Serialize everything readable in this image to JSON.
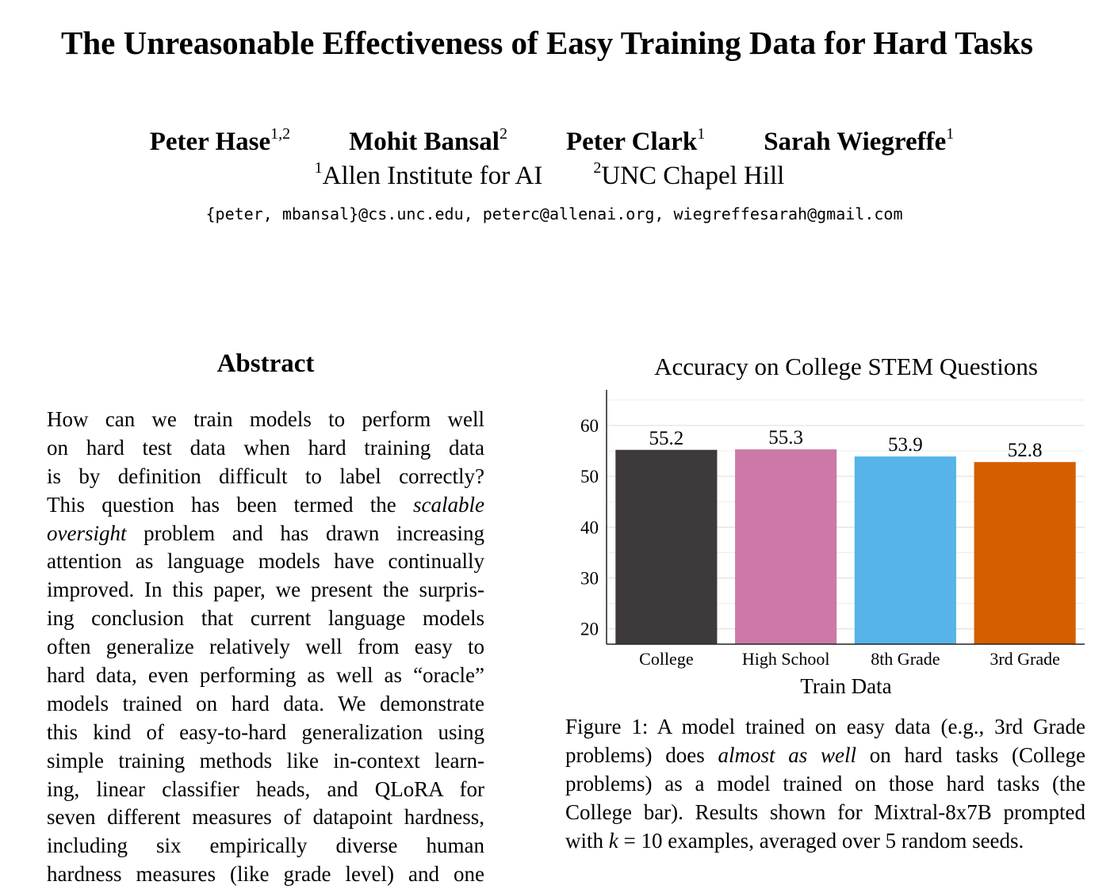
{
  "title": "The Unreasonable Effectiveness of Easy Training Data for Hard Tasks",
  "authors": [
    {
      "name": "Peter Hase",
      "sup": "1,2"
    },
    {
      "name": "Mohit Bansal",
      "sup": "2"
    },
    {
      "name": "Peter Clark",
      "sup": "1"
    },
    {
      "name": "Sarah Wiegreffe",
      "sup": "1"
    }
  ],
  "affiliations": [
    {
      "sup": "1",
      "name": "Allen Institute for AI"
    },
    {
      "sup": "2",
      "name": "UNC Chapel Hill"
    }
  ],
  "emails": "{peter, mbansal}@cs.unc.edu, peterc@allenai.org, wiegreffesarah@gmail.com",
  "abstract": {
    "heading": "Abstract",
    "lines": [
      "How can we train models to perform well",
      "on hard test data when hard training data",
      "is by definition difficult to label correctly?",
      "This question has been termed the scalable",
      "oversight problem and has drawn increasing",
      "attention as language models have continually",
      "improved. In this paper, we present the surpris-",
      "ing conclusion that current language models",
      "often generalize relatively well from easy to",
      "hard data, even performing as well as “oracle”",
      "models trained on hard data. We demonstrate",
      "this kind of easy-to-hard generalization using",
      "simple training methods like in-context learn-",
      "ing, linear classifier heads, and QLoRA for",
      "seven different measures of datapoint hardness,",
      "including six empirically diverse human",
      "hardness measures (like grade level) and one"
    ]
  },
  "chart_data": {
    "type": "bar",
    "title": "Accuracy on College STEM Questions",
    "xlabel": "Train Data",
    "ylabel": "",
    "categories": [
      "College",
      "High School",
      "8th Grade",
      "3rd Grade"
    ],
    "values": [
      55.2,
      55.3,
      53.9,
      52.8
    ],
    "value_labels": [
      "55.2",
      "55.3",
      "53.9",
      "52.8"
    ],
    "colors": [
      "#3e393a",
      "#cc79a7",
      "#56b4e9",
      "#d55e00"
    ],
    "yticks": [
      20,
      30,
      40,
      50,
      60
    ],
    "ylim": [
      17,
      67
    ],
    "grid": true,
    "legend": "none"
  },
  "caption": {
    "lines": [
      "Figure 1: A model trained on easy data (e.g., 3rd Grade",
      "problems) does almost as well on hard tasks (College",
      "problems) as a model trained on those hard tasks (the",
      "College bar). Results shown for Mixtral-8x7B prompted",
      "with k = 10 examples, averaged over 5 random seeds."
    ]
  }
}
